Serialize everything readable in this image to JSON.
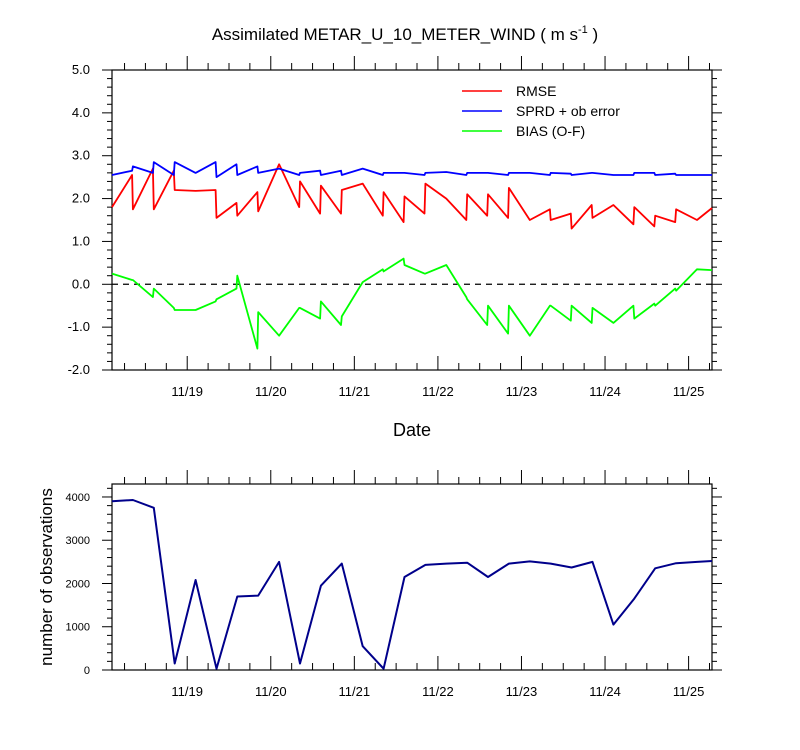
{
  "colors": {
    "rmse": "#ff0000",
    "spread": "#0000ff",
    "bias": "#00ff00",
    "obs_count_line": "#00008b",
    "zero_line": "#000000"
  },
  "chart_data": [
    {
      "type": "line",
      "title": "Assimilated METAR_U_10_METER_WIND ( m s",
      "title_sup": "-1",
      "title_end": " )",
      "xlabel": "Date",
      "ylabel": "",
      "x_unit": "day",
      "xlim": [
        18.1,
        25.28
      ],
      "ylim": [
        -2.0,
        5.0
      ],
      "yticks": [
        -2.0,
        -1.0,
        0.0,
        1.0,
        2.0,
        3.0,
        4.0,
        5.0
      ],
      "ytick_labels": [
        "-2.0",
        "-1.0",
        "0.0",
        "1.0",
        "2.0",
        "3.0",
        "4.0",
        "5.0"
      ],
      "xticks": [
        19.0,
        20.0,
        21.0,
        22.0,
        23.0,
        24.0,
        25.0
      ],
      "xtick_labels": [
        "11/19",
        "11/20",
        "11/21",
        "11/22",
        "11/23",
        "11/24",
        "11/25"
      ],
      "grid": false,
      "legend_position": "top-right",
      "zero_line": true,
      "series": [
        {
          "name": "RMSE",
          "x": [
            18.1,
            18.34,
            18.35,
            18.59,
            18.6,
            18.84,
            18.85,
            19.1,
            19.34,
            19.35,
            19.59,
            19.6,
            19.84,
            19.85,
            20.1,
            20.34,
            20.35,
            20.59,
            20.6,
            20.84,
            20.85,
            21.1,
            21.34,
            21.35,
            21.59,
            21.6,
            21.84,
            21.85,
            22.1,
            22.34,
            22.35,
            22.59,
            22.6,
            22.84,
            22.85,
            23.1,
            23.34,
            23.35,
            23.59,
            23.6,
            23.84,
            23.85,
            24.1,
            24.34,
            24.35,
            24.59,
            24.6,
            24.84,
            24.85,
            25.1,
            25.28
          ],
          "values": [
            1.8,
            2.55,
            1.75,
            2.7,
            1.75,
            2.65,
            2.2,
            2.18,
            2.2,
            1.55,
            1.9,
            1.6,
            2.15,
            1.7,
            2.8,
            1.8,
            2.4,
            1.65,
            2.3,
            1.65,
            2.2,
            2.35,
            1.6,
            2.15,
            1.45,
            2.05,
            1.65,
            2.35,
            2.0,
            1.5,
            2.1,
            1.6,
            2.1,
            1.55,
            2.25,
            1.5,
            1.75,
            1.5,
            1.65,
            1.3,
            1.85,
            1.55,
            1.85,
            1.4,
            1.8,
            1.35,
            1.6,
            1.45,
            1.75,
            1.5,
            1.78
          ]
        },
        {
          "name": "SPRD + ob error",
          "x": [
            18.1,
            18.34,
            18.35,
            18.59,
            18.6,
            18.84,
            18.85,
            19.1,
            19.34,
            19.35,
            19.59,
            19.6,
            19.84,
            19.85,
            20.1,
            20.34,
            20.35,
            20.59,
            20.6,
            20.84,
            20.85,
            21.1,
            21.34,
            21.35,
            21.59,
            21.6,
            21.84,
            21.85,
            22.1,
            22.34,
            22.35,
            22.59,
            22.6,
            22.84,
            22.85,
            23.1,
            23.34,
            23.35,
            23.59,
            23.6,
            23.84,
            23.85,
            24.1,
            24.34,
            24.35,
            24.59,
            24.6,
            24.84,
            24.85,
            25.1,
            25.28
          ],
          "values": [
            2.55,
            2.65,
            2.75,
            2.6,
            2.85,
            2.55,
            2.85,
            2.6,
            2.85,
            2.5,
            2.8,
            2.55,
            2.75,
            2.6,
            2.7,
            2.55,
            2.6,
            2.65,
            2.55,
            2.65,
            2.55,
            2.7,
            2.55,
            2.6,
            2.6,
            2.6,
            2.55,
            2.6,
            2.62,
            2.55,
            2.6,
            2.6,
            2.6,
            2.55,
            2.6,
            2.6,
            2.55,
            2.6,
            2.58,
            2.55,
            2.6,
            2.6,
            2.55,
            2.55,
            2.6,
            2.6,
            2.55,
            2.58,
            2.55,
            2.55,
            2.55
          ]
        },
        {
          "name": "BIAS (O-F)",
          "x": [
            18.1,
            18.34,
            18.35,
            18.59,
            18.6,
            18.84,
            18.85,
            19.1,
            19.34,
            19.35,
            19.59,
            19.6,
            19.84,
            19.85,
            20.1,
            20.34,
            20.35,
            20.59,
            20.6,
            20.84,
            20.85,
            21.1,
            21.34,
            21.35,
            21.59,
            21.6,
            21.84,
            21.85,
            22.1,
            22.34,
            22.35,
            22.59,
            22.6,
            22.84,
            22.85,
            23.1,
            23.34,
            23.35,
            23.59,
            23.6,
            23.84,
            23.85,
            24.1,
            24.34,
            24.35,
            24.59,
            24.6,
            24.84,
            24.85,
            25.1,
            25.28
          ],
          "values": [
            0.25,
            0.1,
            0.1,
            -0.3,
            -0.1,
            -0.55,
            -0.6,
            -0.6,
            -0.4,
            -0.35,
            -0.1,
            0.2,
            -1.5,
            -0.65,
            -1.2,
            -0.55,
            -0.55,
            -0.8,
            -0.4,
            -0.95,
            -0.75,
            0.05,
            0.35,
            0.3,
            0.6,
            0.45,
            0.25,
            0.25,
            0.45,
            -0.3,
            -0.35,
            -0.95,
            -0.5,
            -1.15,
            -0.5,
            -1.2,
            -0.5,
            -0.5,
            -0.85,
            -0.5,
            -0.9,
            -0.55,
            -0.9,
            -0.5,
            -0.8,
            -0.45,
            -0.5,
            -0.1,
            -0.15,
            0.35,
            0.33
          ]
        }
      ]
    },
    {
      "type": "line",
      "title": "",
      "xlabel": "",
      "ylabel": "number of observations",
      "x_unit": "day",
      "xlim": [
        18.1,
        25.28
      ],
      "ylim": [
        0,
        4300
      ],
      "yticks": [
        0,
        1000,
        2000,
        3000,
        4000
      ],
      "ytick_labels": [
        "0",
        "1000",
        "2000",
        "3000",
        "4000"
      ],
      "xticks": [
        19.0,
        20.0,
        21.0,
        22.0,
        23.0,
        24.0,
        25.0
      ],
      "xtick_labels": [
        "11/19",
        "11/20",
        "11/21",
        "11/22",
        "11/23",
        "11/24",
        "11/25"
      ],
      "grid": false,
      "series": [
        {
          "x": [
            18.1,
            18.35,
            18.6,
            18.85,
            19.1,
            19.35,
            19.6,
            19.85,
            20.1,
            20.35,
            20.6,
            20.85,
            21.1,
            21.35,
            21.6,
            21.85,
            22.1,
            22.35,
            22.6,
            22.85,
            23.1,
            23.35,
            23.6,
            23.85,
            24.1,
            24.35,
            24.6,
            24.85,
            25.1,
            25.28
          ],
          "values": [
            3900,
            3930,
            3750,
            150,
            2080,
            30,
            1700,
            1720,
            2500,
            150,
            1950,
            2460,
            550,
            30,
            2150,
            2430,
            2460,
            2480,
            2150,
            2460,
            2510,
            2460,
            2370,
            2500,
            1050,
            1650,
            2350,
            2470,
            2500,
            2520
          ]
        }
      ]
    }
  ]
}
